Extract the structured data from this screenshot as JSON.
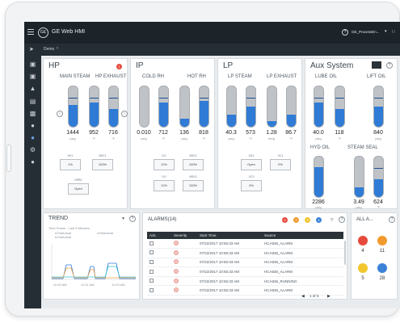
{
  "app": {
    "title": "GE Web HMI",
    "user": "GE_ProcessEn...",
    "breadcrumb": "Demo",
    "logo": "GE"
  },
  "panels": {
    "hp": {
      "title": "HP",
      "badge": "1",
      "gauges": [
        {
          "label": "MAIN STEAM",
          "value": "1444",
          "unit": "psig",
          "level": 0.55
        },
        {
          "label": "",
          "value": "952",
          "unit": "°F",
          "level": 0.6
        },
        {
          "label": "HP EXHAUST",
          "value": "716",
          "unit": "°F",
          "level": 0.45
        }
      ],
      "valves": [
        {
          "tag": "HV1",
          "value": "1%"
        },
        {
          "tag": "BSV1",
          "value": "100%"
        },
        {
          "tag": "HPBV",
          "value": "Open"
        }
      ]
    },
    "ip": {
      "title": "IP",
      "gauges": [
        {
          "label": "COLD RH",
          "value": "0.010",
          "unit": "psig",
          "level": 0.0
        },
        {
          "label": "",
          "value": "712",
          "unit": "°F",
          "level": 0.6
        },
        {
          "label": "HOT RH",
          "value": "136",
          "unit": "psig",
          "level": 0.2
        },
        {
          "label": "",
          "value": "818",
          "unit": "°F",
          "level": 0.65
        }
      ],
      "valves": [
        {
          "tag": "IV1",
          "value": "11%"
        },
        {
          "tag": "BSV2",
          "value": "100%"
        },
        {
          "tag": "IV2",
          "value": "11%"
        },
        {
          "tag": "BSV3",
          "value": "100%"
        }
      ]
    },
    "lp": {
      "title": "LP",
      "gauges": [
        {
          "label": "LP STEAM",
          "value": "40.3",
          "unit": "psig",
          "level": 0.3
        },
        {
          "label": "",
          "value": "573",
          "unit": "°F",
          "level": 0.5
        },
        {
          "label": "LP EXHAUST",
          "value": "1.28",
          "unit": "inHg",
          "level": 0.15
        },
        {
          "label": "",
          "value": "86.7",
          "unit": "°F",
          "level": 0.3
        }
      ],
      "valves": [
        {
          "tag": "VD1",
          "value": "Open"
        },
        {
          "tag": "VC1",
          "value": "0%"
        },
        {
          "tag": "VC2",
          "value": "0%"
        }
      ]
    },
    "aux": {
      "title": "Aux System",
      "gauges": [
        {
          "label": "LUBE OIL",
          "value": "40.0",
          "unit": "psig",
          "level": 0.6
        },
        {
          "label": "",
          "value": "118",
          "unit": "°F",
          "level": 0.45
        },
        {
          "label": "LIFT OIL",
          "value": "840",
          "unit": "psig",
          "level": 0.5
        },
        {
          "label": "HYD OIL",
          "value": "2286",
          "unit": "psig",
          "level": 0.75
        },
        {
          "label": "STEAM SEAL",
          "value": "3.49",
          "unit": "psig",
          "level": 0.25
        },
        {
          "label": "",
          "value": "624",
          "unit": "°F",
          "level": 0.45
        }
      ]
    }
  },
  "trend": {
    "title": "TREND",
    "timeframe": "Time Frame : Last 5 Minutes",
    "legend": [
      "e23aActual",
      "e22aActual",
      "e29aActual"
    ],
    "xticks": [
      "11:00 AM",
      "11:01 AM",
      "11:03 AM"
    ],
    "colors": [
      "#2f7bd6",
      "#f0a040",
      "#3cc3d6"
    ]
  },
  "alarms": {
    "title": "ALARMS(14)",
    "counts": [
      "6",
      "4",
      "5",
      "4"
    ],
    "columns": [
      "Ack.",
      "Severity",
      "Start Time",
      "Source"
    ],
    "rows": [
      {
        "time": "07/22/2017 10:55:33 AM",
        "source": "HCA836_ALARM"
      },
      {
        "time": "07/22/2017 10:55:33 AM",
        "source": "HCA836_ALARM"
      },
      {
        "time": "07/22/2017 10:55:33 AM",
        "source": "HCA836_ALARM"
      },
      {
        "time": "07/22/2017 10:55:33 AM",
        "source": "HCA836_ALARM"
      },
      {
        "time": "07/22/2017 10:55:33 AM",
        "source": "HCA836_RUNNING"
      },
      {
        "time": "07/22/2017 10:55:33 AM",
        "source": "HCA836_ALARM"
      }
    ],
    "pager": "1 of 3"
  },
  "all": {
    "title": "ALL A...",
    "items": [
      {
        "count": "4",
        "color": "#e64a3c"
      },
      {
        "count": "11",
        "color": "#f29a2e"
      },
      {
        "count": "5",
        "color": "#f2c62e"
      },
      {
        "count": "28",
        "color": "#3b82d6"
      }
    ]
  }
}
